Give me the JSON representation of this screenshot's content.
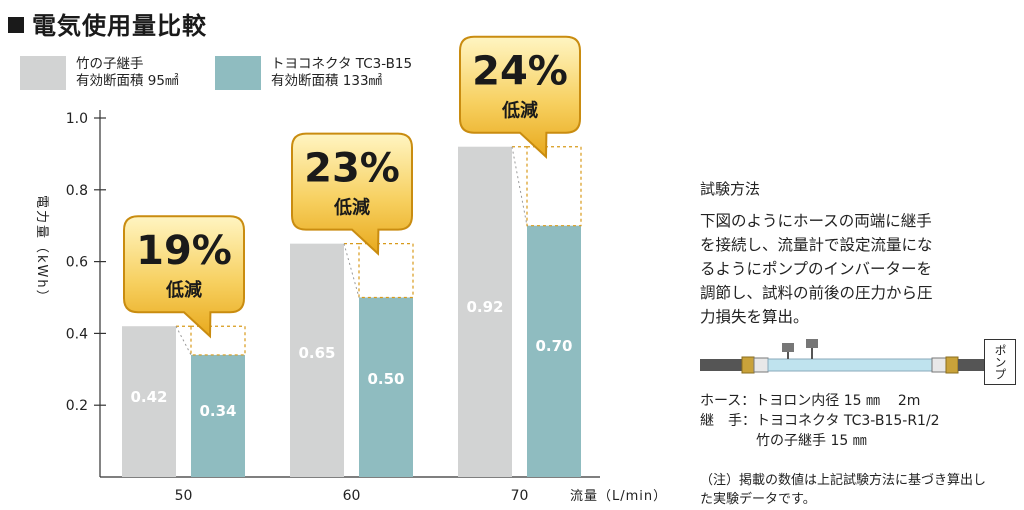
{
  "title": "電気使用量比較",
  "legend": [
    {
      "line1": "竹の子継手",
      "line2": "有効断面積 95㎟",
      "color": "#d2d3d3"
    },
    {
      "line1": "トヨコネクタ  TC3-B15",
      "line2": "有効断面積 133㎟",
      "color": "#8fbcc0"
    }
  ],
  "chart_data": {
    "type": "bar",
    "categories": [
      "50",
      "60",
      "70"
    ],
    "series": [
      {
        "name": "竹の子継手",
        "values": [
          0.42,
          0.65,
          0.92
        ],
        "color": "#d2d3d3"
      },
      {
        "name": "トヨコネクタ TC3-B15",
        "values": [
          0.34,
          0.5,
          0.7
        ],
        "color": "#8fbcc0"
      }
    ],
    "value_labels": [
      [
        "0.42",
        "0.65",
        "0.92"
      ],
      [
        "0.34",
        "0.50",
        "0.70"
      ]
    ],
    "reductions": [
      {
        "percent": "19%",
        "label": "低減"
      },
      {
        "percent": "23%",
        "label": "低減"
      },
      {
        "percent": "24%",
        "label": "低減"
      }
    ],
    "ylabel": "電力量（kWh）",
    "xlabel": "流量（L/min）",
    "ylim": [
      0,
      1.0
    ],
    "yticks": [
      "0.2",
      "0.4",
      "0.6",
      "0.8",
      "1.0"
    ],
    "ytick_values": [
      0.2,
      0.4,
      0.6,
      0.8,
      1.0
    ]
  },
  "method": {
    "heading": "試験方法",
    "lines": [
      "下図のようにホースの両端に継手",
      "を接続し、流量計で設定流量にな",
      "るようにポンプのインバーターを",
      "調節し、試料の前後の圧力から圧",
      "力損失を算出。"
    ],
    "pump_label": "ポンプ",
    "spec": [
      "ホース：トヨロン内径 15 ㎜    2m",
      "継　手：トヨコネクタ TC3-B15-R1/2",
      "　　　　竹の子継手 15 ㎜"
    ],
    "note": [
      "（注）掲載の数値は上記試験方法に基づき算出し",
      "た実験データです。"
    ]
  }
}
